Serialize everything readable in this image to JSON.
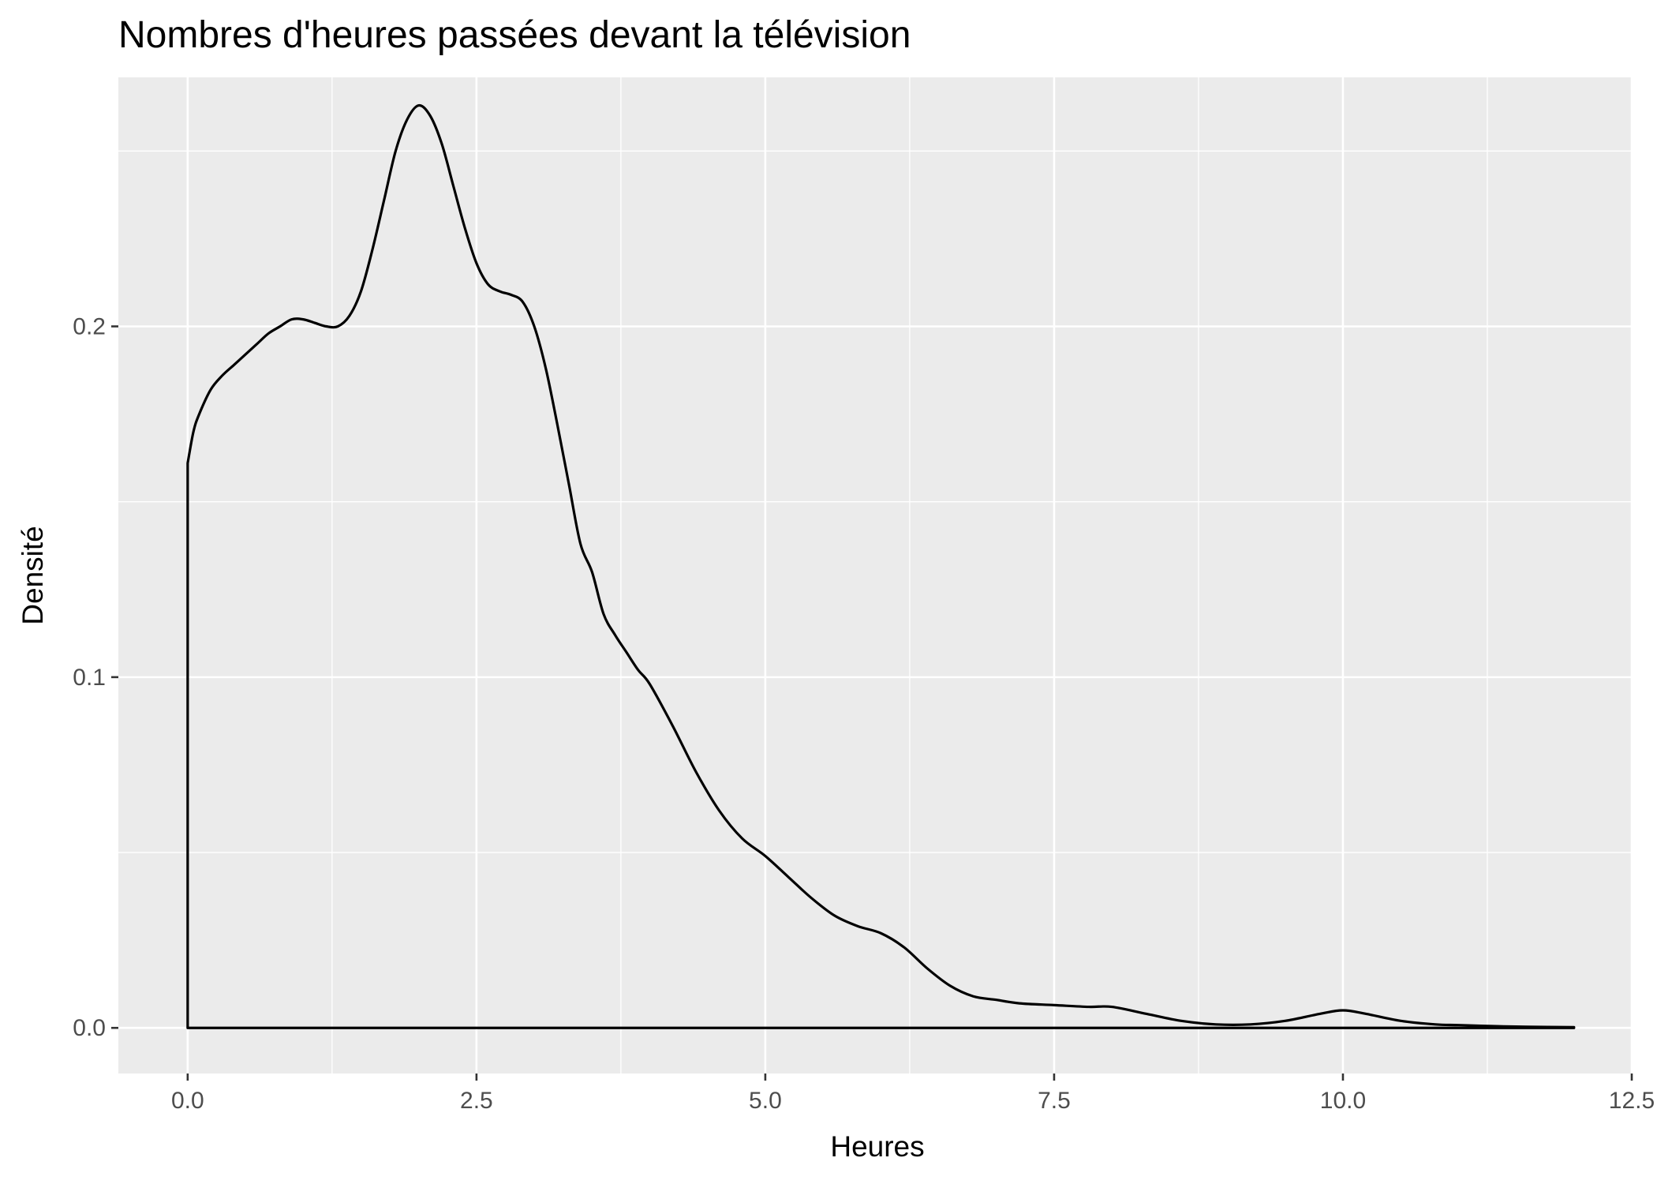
{
  "chart_data": {
    "type": "area",
    "title": "Nombres d'heures passées devant la télévision",
    "xlabel": "Heures",
    "ylabel": "Densité",
    "xlim": [
      -0.6,
      12.5
    ],
    "ylim": [
      -0.013,
      0.271
    ],
    "x_ticks": [
      0,
      2.5,
      5,
      7.5,
      10,
      12.5
    ],
    "x_tick_labels": [
      "0.0",
      "2.5",
      "5.0",
      "7.5",
      "10.0",
      "12.5"
    ],
    "x_minor_ticks": [
      1.25,
      3.75,
      6.25,
      8.75,
      11.25
    ],
    "y_ticks": [
      0,
      0.1,
      0.2
    ],
    "y_tick_labels": [
      "0.0",
      "0.1",
      "0.2"
    ],
    "y_minor_ticks": [
      0.05,
      0.15,
      0.25
    ],
    "grid": true,
    "background": "#ebebeb",
    "line_color": "#000000",
    "fill": "none",
    "series": [
      {
        "x": [
          0,
          0.05,
          0.1,
          0.2,
          0.3,
          0.4,
          0.5,
          0.6,
          0.7,
          0.8,
          0.9,
          1.0,
          1.1,
          1.2,
          1.3,
          1.4,
          1.5,
          1.6,
          1.7,
          1.8,
          1.9,
          2.0,
          2.1,
          2.2,
          2.3,
          2.4,
          2.5,
          2.6,
          2.7,
          2.8,
          2.9,
          3.0,
          3.1,
          3.2,
          3.3,
          3.4,
          3.5,
          3.6,
          3.7,
          3.8,
          3.9,
          4.0,
          4.2,
          4.4,
          4.6,
          4.8,
          5.0,
          5.2,
          5.4,
          5.6,
          5.8,
          6.0,
          6.2,
          6.4,
          6.6,
          6.8,
          7.0,
          7.2,
          7.5,
          7.8,
          8.0,
          8.3,
          8.6,
          8.9,
          9.2,
          9.5,
          9.8,
          10.0,
          10.2,
          10.5,
          10.8,
          11.0,
          11.3,
          11.6,
          12.0
        ],
        "y": [
          0.161,
          0.17,
          0.175,
          0.182,
          0.186,
          0.189,
          0.192,
          0.195,
          0.198,
          0.2,
          0.202,
          0.202,
          0.201,
          0.2,
          0.2,
          0.203,
          0.21,
          0.222,
          0.236,
          0.25,
          0.259,
          0.263,
          0.26,
          0.252,
          0.24,
          0.228,
          0.218,
          0.212,
          0.21,
          0.209,
          0.207,
          0.2,
          0.188,
          0.172,
          0.155,
          0.138,
          0.13,
          0.118,
          0.112,
          0.107,
          0.102,
          0.098,
          0.086,
          0.073,
          0.062,
          0.054,
          0.049,
          0.043,
          0.037,
          0.032,
          0.029,
          0.027,
          0.023,
          0.017,
          0.012,
          0.009,
          0.008,
          0.007,
          0.0065,
          0.006,
          0.006,
          0.004,
          0.002,
          0.001,
          0.001,
          0.002,
          0.004,
          0.005,
          0.004,
          0.002,
          0.001,
          0.0008,
          0.0005,
          0.0003,
          0.0002
        ]
      }
    ]
  }
}
